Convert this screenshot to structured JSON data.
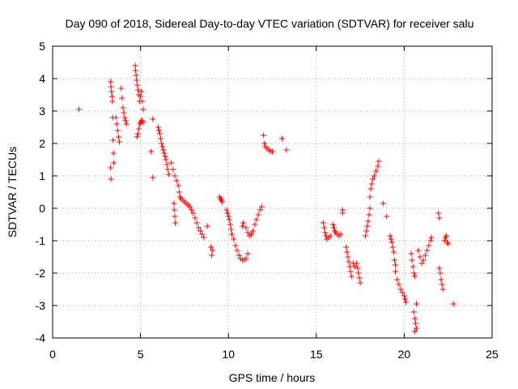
{
  "chart_data": {
    "type": "scatter",
    "title": "Day 090 of 2018, Sidereal Day-to-day VTEC variation (SDTVAR) for receiver salu",
    "xlabel": "GPS time / hours",
    "ylabel": "SDTVAR / TECUs",
    "xlim": [
      0,
      25
    ],
    "ylim": [
      -4,
      5
    ],
    "xticks": [
      "0",
      "5",
      "10",
      "15",
      "20",
      "25"
    ],
    "yticks": [
      "5",
      "4",
      "3",
      "2",
      "1",
      "0",
      "-1",
      "-2",
      "-3",
      "-4"
    ],
    "grid": true,
    "marker": "+",
    "color": "#ff0000",
    "series": [
      {
        "name": "SDTVAR",
        "points": [
          [
            1.5,
            3.05
          ],
          [
            3.3,
            3.9
          ],
          [
            3.32,
            3.75
          ],
          [
            3.35,
            3.6
          ],
          [
            3.38,
            3.45
          ],
          [
            3.4,
            3.3
          ],
          [
            3.42,
            2.8
          ],
          [
            3.44,
            2.1
          ],
          [
            3.46,
            1.7
          ],
          [
            3.48,
            1.4
          ],
          [
            3.3,
            1.25
          ],
          [
            3.32,
            0.9
          ],
          [
            3.6,
            2.8
          ],
          [
            3.65,
            2.6
          ],
          [
            3.7,
            2.4
          ],
          [
            3.75,
            2.2
          ],
          [
            3.8,
            2.05
          ],
          [
            3.9,
            3.7
          ],
          [
            3.95,
            3.4
          ],
          [
            4.0,
            3.1
          ],
          [
            4.05,
            2.95
          ],
          [
            4.1,
            2.8
          ],
          [
            4.15,
            2.7
          ],
          [
            4.2,
            2.6
          ],
          [
            4.7,
            4.4
          ],
          [
            4.72,
            4.25
          ],
          [
            4.75,
            4.1
          ],
          [
            4.78,
            3.95
          ],
          [
            4.82,
            3.8
          ],
          [
            4.86,
            3.65
          ],
          [
            4.9,
            3.5
          ],
          [
            4.95,
            3.3
          ],
          [
            5.0,
            3.45
          ],
          [
            5.05,
            3.6
          ],
          [
            5.1,
            3.3
          ],
          [
            5.15,
            3.05
          ],
          [
            4.8,
            2.2
          ],
          [
            4.85,
            2.3
          ],
          [
            4.9,
            2.45
          ],
          [
            4.95,
            2.6
          ],
          [
            5.0,
            2.65
          ],
          [
            5.05,
            2.7
          ],
          [
            5.1,
            2.7
          ],
          [
            5.15,
            2.65
          ],
          [
            5.7,
            2.75
          ],
          [
            5.6,
            1.75
          ],
          [
            5.7,
            0.95
          ],
          [
            6.0,
            2.5
          ],
          [
            6.05,
            2.4
          ],
          [
            6.1,
            2.3
          ],
          [
            6.15,
            2.15
          ],
          [
            6.2,
            2.0
          ],
          [
            6.25,
            1.9
          ],
          [
            6.3,
            1.8
          ],
          [
            6.35,
            1.7
          ],
          [
            6.4,
            1.6
          ],
          [
            6.45,
            1.5
          ],
          [
            6.5,
            1.35
          ],
          [
            6.55,
            1.2
          ],
          [
            6.6,
            1.05
          ],
          [
            6.75,
            1.4
          ],
          [
            6.85,
            1.2
          ],
          [
            6.95,
            1.0
          ],
          [
            7.05,
            0.85
          ],
          [
            7.15,
            0.7
          ],
          [
            7.2,
            0.5
          ],
          [
            7.25,
            0.35
          ],
          [
            6.9,
            0.15
          ],
          [
            6.92,
            -0.05
          ],
          [
            6.95,
            -0.25
          ],
          [
            6.98,
            -0.45
          ],
          [
            7.3,
            0.3
          ],
          [
            7.4,
            0.25
          ],
          [
            7.5,
            0.2
          ],
          [
            7.6,
            0.15
          ],
          [
            7.7,
            0.1
          ],
          [
            7.8,
            0.05
          ],
          [
            7.9,
            -0.05
          ],
          [
            8.0,
            -0.15
          ],
          [
            8.1,
            -0.3
          ],
          [
            8.2,
            -0.45
          ],
          [
            8.3,
            -0.6
          ],
          [
            8.4,
            -0.7
          ],
          [
            8.5,
            -0.8
          ],
          [
            8.6,
            -0.9
          ],
          [
            8.8,
            -0.55
          ],
          [
            9.0,
            -1.2
          ],
          [
            9.1,
            -1.3
          ],
          [
            9.05,
            -1.45
          ],
          [
            9.5,
            0.35
          ],
          [
            9.55,
            0.3
          ],
          [
            9.6,
            0.25
          ],
          [
            9.65,
            0.2
          ],
          [
            9.9,
            -0.05
          ],
          [
            9.95,
            -0.15
          ],
          [
            10.0,
            -0.25
          ],
          [
            10.05,
            -0.35
          ],
          [
            10.1,
            -0.5
          ],
          [
            10.15,
            -0.65
          ],
          [
            10.2,
            -0.8
          ],
          [
            10.3,
            -0.95
          ],
          [
            10.4,
            -1.15
          ],
          [
            10.5,
            -1.3
          ],
          [
            10.6,
            -1.45
          ],
          [
            10.7,
            -1.55
          ],
          [
            10.8,
            -1.6
          ],
          [
            10.9,
            -1.6
          ],
          [
            11.0,
            -1.55
          ],
          [
            11.1,
            -1.4
          ],
          [
            10.8,
            -0.55
          ],
          [
            10.85,
            -0.45
          ],
          [
            11.0,
            -0.6
          ],
          [
            11.1,
            -0.75
          ],
          [
            11.2,
            -0.85
          ],
          [
            11.3,
            -0.8
          ],
          [
            11.4,
            -0.7
          ],
          [
            11.5,
            -0.5
          ],
          [
            11.6,
            -0.35
          ],
          [
            11.7,
            -0.2
          ],
          [
            11.8,
            -0.05
          ],
          [
            11.9,
            0.05
          ],
          [
            12.0,
            2.25
          ],
          [
            12.05,
            2.0
          ],
          [
            12.1,
            1.9
          ],
          [
            12.2,
            1.85
          ],
          [
            12.3,
            1.8
          ],
          [
            12.4,
            1.75
          ],
          [
            12.5,
            1.75
          ],
          [
            13.05,
            2.15
          ],
          [
            13.3,
            1.8
          ],
          [
            15.4,
            -0.45
          ],
          [
            15.45,
            -0.6
          ],
          [
            15.5,
            -0.75
          ],
          [
            15.55,
            -0.85
          ],
          [
            15.6,
            -0.95
          ],
          [
            15.7,
            -0.9
          ],
          [
            15.8,
            -0.85
          ],
          [
            15.95,
            -0.5
          ],
          [
            16.0,
            -0.6
          ],
          [
            16.05,
            -0.7
          ],
          [
            16.1,
            -0.75
          ],
          [
            16.2,
            -0.8
          ],
          [
            16.3,
            -0.85
          ],
          [
            16.4,
            -0.8
          ],
          [
            16.5,
            -0.05
          ],
          [
            16.5,
            -0.15
          ],
          [
            16.7,
            -1.2
          ],
          [
            16.75,
            -1.35
          ],
          [
            16.8,
            -1.5
          ],
          [
            16.85,
            -1.65
          ],
          [
            16.9,
            -1.8
          ],
          [
            16.95,
            -1.95
          ],
          [
            17.0,
            -2.1
          ],
          [
            17.1,
            -1.7
          ],
          [
            17.2,
            -1.8
          ],
          [
            17.3,
            -1.7
          ],
          [
            17.35,
            -1.85
          ],
          [
            17.4,
            -2.0
          ],
          [
            17.45,
            -2.15
          ],
          [
            17.5,
            -2.3
          ],
          [
            17.8,
            -0.85
          ],
          [
            17.85,
            -0.7
          ],
          [
            17.9,
            -0.55
          ],
          [
            17.95,
            -0.4
          ],
          [
            18.0,
            -0.2
          ],
          [
            18.05,
            0.0
          ],
          [
            18.05,
            0.35
          ],
          [
            18.1,
            0.6
          ],
          [
            18.15,
            0.75
          ],
          [
            18.2,
            0.9
          ],
          [
            18.3,
            1.0
          ],
          [
            18.4,
            1.15
          ],
          [
            18.5,
            1.3
          ],
          [
            18.55,
            1.45
          ],
          [
            18.8,
            0.15
          ],
          [
            19.0,
            -0.25
          ],
          [
            19.2,
            -0.85
          ],
          [
            19.25,
            -0.95
          ],
          [
            19.3,
            -1.05
          ],
          [
            19.35,
            -1.2
          ],
          [
            19.4,
            -1.35
          ],
          [
            19.45,
            -1.6
          ],
          [
            19.5,
            -1.75
          ],
          [
            19.5,
            -1.95
          ],
          [
            19.6,
            -2.2
          ],
          [
            19.7,
            -2.35
          ],
          [
            19.8,
            -2.5
          ],
          [
            19.9,
            -2.6
          ],
          [
            20.0,
            -2.7
          ],
          [
            20.05,
            -2.8
          ],
          [
            20.1,
            -2.9
          ],
          [
            20.4,
            -1.4
          ],
          [
            20.45,
            -1.6
          ],
          [
            20.5,
            -1.8
          ],
          [
            20.55,
            -2.0
          ],
          [
            20.6,
            -2.1
          ],
          [
            20.55,
            -3.2
          ],
          [
            20.6,
            -3.4
          ],
          [
            20.65,
            -3.55
          ],
          [
            20.7,
            -3.7
          ],
          [
            20.6,
            -3.8
          ],
          [
            20.7,
            -2.95
          ],
          [
            20.8,
            -1.3
          ],
          [
            20.9,
            -1.5
          ],
          [
            21.0,
            -1.7
          ],
          [
            21.1,
            -1.6
          ],
          [
            21.2,
            -1.45
          ],
          [
            21.3,
            -1.3
          ],
          [
            21.4,
            -1.15
          ],
          [
            21.5,
            -1.0
          ],
          [
            21.55,
            -0.9
          ],
          [
            21.95,
            -0.15
          ],
          [
            22.0,
            -0.3
          ],
          [
            22.0,
            -1.85
          ],
          [
            22.05,
            -2.0
          ],
          [
            22.1,
            -2.2
          ],
          [
            22.15,
            -2.35
          ],
          [
            22.2,
            -2.5
          ],
          [
            22.3,
            -1.0
          ],
          [
            22.35,
            -0.9
          ],
          [
            22.4,
            -0.85
          ],
          [
            22.45,
            -1.05
          ],
          [
            22.5,
            -1.1
          ],
          [
            22.8,
            -2.95
          ]
        ]
      }
    ]
  }
}
